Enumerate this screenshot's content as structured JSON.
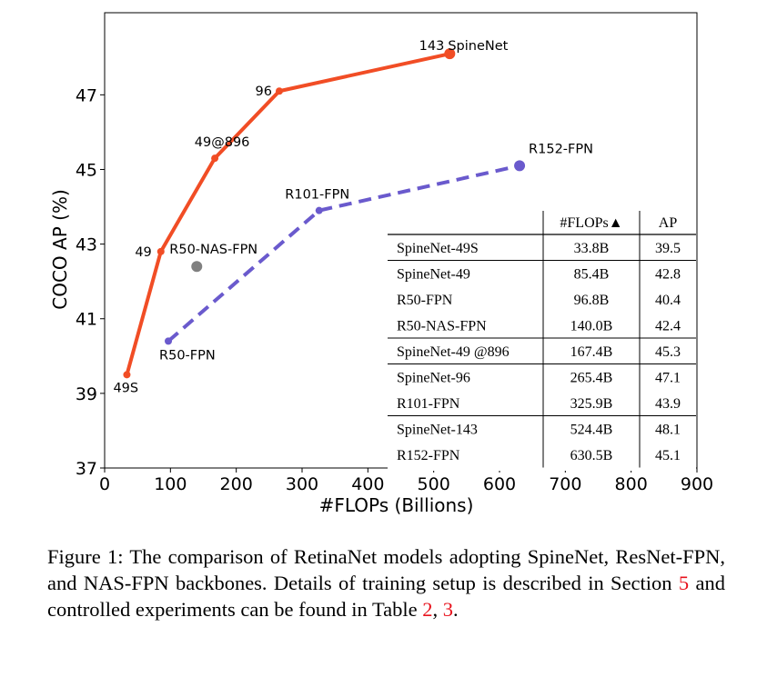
{
  "chart_data": {
    "type": "line",
    "xlabel": "#FLOPs (Billions)",
    "ylabel": "COCO AP (%)",
    "xlim": [
      0,
      900
    ],
    "ylim": [
      37,
      49.2
    ],
    "xticks": [
      0,
      100,
      200,
      300,
      400,
      500,
      600,
      700,
      800,
      900
    ],
    "yticks": [
      37,
      39,
      41,
      43,
      45,
      47
    ],
    "grid": false,
    "series": [
      {
        "name": "SpineNet",
        "color": "#f14d25",
        "style": "solid",
        "points": [
          {
            "x": 33.8,
            "y": 39.5,
            "label": "49S"
          },
          {
            "x": 85.4,
            "y": 42.8,
            "label": "49"
          },
          {
            "x": 167.4,
            "y": 45.3,
            "label": "49@896"
          },
          {
            "x": 265.4,
            "y": 47.1,
            "label": "96"
          },
          {
            "x": 524.4,
            "y": 48.1,
            "label": "143"
          }
        ]
      },
      {
        "name": "",
        "color": "#6a5acd",
        "style": "dashed",
        "points": [
          {
            "x": 96.8,
            "y": 40.4,
            "label": "R50-FPN"
          },
          {
            "x": 325.9,
            "y": 43.9,
            "label": "R101-FPN"
          },
          {
            "x": 630.5,
            "y": 45.1,
            "label": "R152-FPN"
          }
        ]
      },
      {
        "name": "",
        "color": "#808080",
        "style": "marker",
        "points": [
          {
            "x": 140.0,
            "y": 42.4,
            "label": "R50-NAS-FPN"
          }
        ]
      }
    ],
    "table": {
      "headers": [
        "",
        "#FLOPs▲",
        "AP"
      ],
      "groups": [
        [
          [
            "SpineNet-49S",
            "33.8B",
            "39.5"
          ]
        ],
        [
          [
            "SpineNet-49",
            "85.4B",
            "42.8"
          ],
          [
            "R50-FPN",
            "96.8B",
            "40.4"
          ],
          [
            "R50-NAS-FPN",
            "140.0B",
            "42.4"
          ]
        ],
        [
          [
            "SpineNet-49 @896",
            "167.4B",
            "45.3"
          ]
        ],
        [
          [
            "SpineNet-96",
            "265.4B",
            "47.1"
          ],
          [
            "R101-FPN",
            "325.9B",
            "43.9"
          ]
        ],
        [
          [
            "SpineNet-143",
            "524.4B",
            "48.1"
          ],
          [
            "R152-FPN",
            "630.5B",
            "45.1"
          ]
        ]
      ]
    }
  },
  "caption": {
    "prefix": "Figure 1:   The comparison of RetinaNet models adopting SpineNet, ResNet-FPN, and NAS-FPN backbones.  Details of training setup is described in Section ",
    "ref1": "5",
    "middle": " and controlled experiments can be found in Table ",
    "ref2": "2",
    "sep": ", ",
    "ref3": "3",
    "suffix": "."
  }
}
